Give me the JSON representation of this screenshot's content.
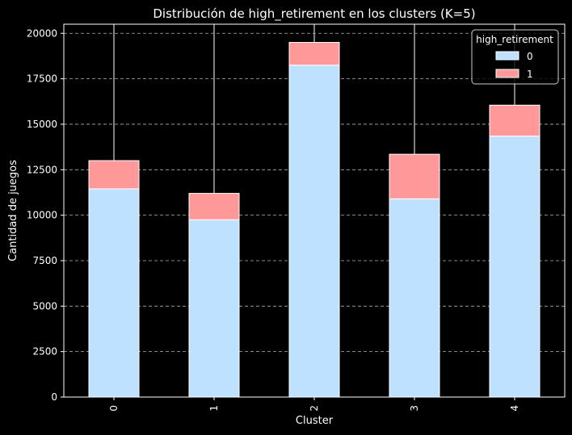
{
  "chart_data": {
    "type": "bar",
    "stacked": true,
    "title": "Distribución de high_retirement en los clusters (K=5)",
    "xlabel": "Cluster",
    "ylabel": "Cantidad de juegos",
    "categories": [
      "0",
      "1",
      "2",
      "3",
      "4"
    ],
    "ylim": [
      0,
      20500
    ],
    "yticks": [
      0,
      2500,
      5000,
      7500,
      10000,
      12500,
      15000,
      17500,
      20000
    ],
    "grid": true,
    "legend": {
      "title": "high_retirement",
      "placement": "top-right"
    },
    "series": [
      {
        "name": "0",
        "color": "#bde1ff",
        "values": [
          11450,
          9750,
          18250,
          10900,
          14350
        ]
      },
      {
        "name": "1",
        "color": "#ff9999",
        "values": [
          1550,
          1450,
          1250,
          2450,
          1700
        ]
      }
    ],
    "background": "#000000",
    "foreground": "#ffffff"
  }
}
